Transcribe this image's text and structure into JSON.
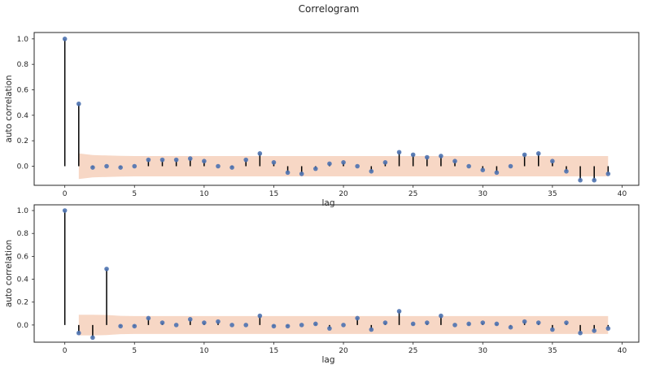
{
  "suptitle": "Correlogram",
  "colors": {
    "stem": "#000000",
    "marker": "#4c72b0",
    "band": "#f4c9b2"
  },
  "chart_data": [
    {
      "type": "stem",
      "xlabel": "lag",
      "ylabel": "auto correlation",
      "xlim": [
        -2.2,
        41.2
      ],
      "ylim": [
        -0.15,
        1.05
      ],
      "xticks": [
        0,
        5,
        10,
        15,
        20,
        25,
        30,
        35,
        40
      ],
      "yticks": [
        0.0,
        0.2,
        0.4,
        0.6,
        0.8,
        1.0
      ],
      "ytick_labels": [
        "0.0",
        "0.2",
        "0.4",
        "0.6",
        "0.8",
        "1.0"
      ],
      "grid": false,
      "lags": [
        0,
        1,
        2,
        3,
        4,
        5,
        6,
        7,
        8,
        9,
        10,
        11,
        12,
        13,
        14,
        15,
        16,
        17,
        18,
        19,
        20,
        21,
        22,
        23,
        24,
        25,
        26,
        27,
        28,
        29,
        30,
        31,
        32,
        33,
        34,
        35,
        36,
        37,
        38,
        39
      ],
      "values": [
        1.0,
        0.49,
        -0.01,
        0.0,
        -0.01,
        0.0,
        0.05,
        0.05,
        0.05,
        0.06,
        0.04,
        0.0,
        -0.01,
        0.05,
        0.1,
        0.03,
        -0.05,
        -0.06,
        -0.02,
        0.02,
        0.03,
        0.0,
        -0.04,
        0.03,
        0.11,
        0.09,
        0.07,
        0.08,
        0.04,
        0.0,
        -0.03,
        -0.05,
        0.0,
        0.09,
        0.1,
        0.04,
        -0.04,
        -0.11,
        -0.11,
        -0.06
      ],
      "confidence_band": {
        "x": [
          1,
          2,
          3,
          4,
          5,
          39
        ],
        "lower": [
          -0.1,
          -0.088,
          -0.084,
          -0.081,
          -0.08,
          -0.08
        ],
        "upper": [
          0.1,
          0.088,
          0.084,
          0.081,
          0.08,
          0.08
        ]
      }
    },
    {
      "type": "stem",
      "xlabel": "lag",
      "ylabel": "auto correlation",
      "xlim": [
        -2.2,
        41.2
      ],
      "ylim": [
        -0.15,
        1.05
      ],
      "xticks": [
        0,
        5,
        10,
        15,
        20,
        25,
        30,
        35,
        40
      ],
      "yticks": [
        0.0,
        0.2,
        0.4,
        0.6,
        0.8,
        1.0
      ],
      "ytick_labels": [
        "0.0",
        "0.2",
        "0.4",
        "0.6",
        "0.8",
        "1.0"
      ],
      "grid": false,
      "lags": [
        0,
        1,
        2,
        3,
        4,
        5,
        6,
        7,
        8,
        9,
        10,
        11,
        12,
        13,
        14,
        15,
        16,
        17,
        18,
        19,
        20,
        21,
        22,
        23,
        24,
        25,
        26,
        27,
        28,
        29,
        30,
        31,
        32,
        33,
        34,
        35,
        36,
        37,
        38,
        39
      ],
      "values": [
        1.0,
        -0.07,
        -0.11,
        0.49,
        -0.01,
        -0.01,
        0.06,
        0.02,
        0.0,
        0.05,
        0.02,
        0.03,
        0.0,
        0.0,
        0.08,
        -0.01,
        -0.01,
        0.0,
        0.01,
        -0.03,
        0.0,
        0.06,
        -0.04,
        0.02,
        0.12,
        0.01,
        0.02,
        0.08,
        0.0,
        0.01,
        0.02,
        0.01,
        -0.02,
        0.03,
        0.02,
        -0.04,
        0.02,
        -0.07,
        -0.05,
        -0.03
      ],
      "confidence_band": {
        "x": [
          1,
          2,
          3,
          4,
          5,
          39
        ],
        "lower": [
          -0.09,
          -0.09,
          -0.088,
          -0.08,
          -0.078,
          -0.078
        ],
        "upper": [
          0.09,
          0.09,
          0.088,
          0.08,
          0.078,
          0.078
        ]
      }
    }
  ]
}
